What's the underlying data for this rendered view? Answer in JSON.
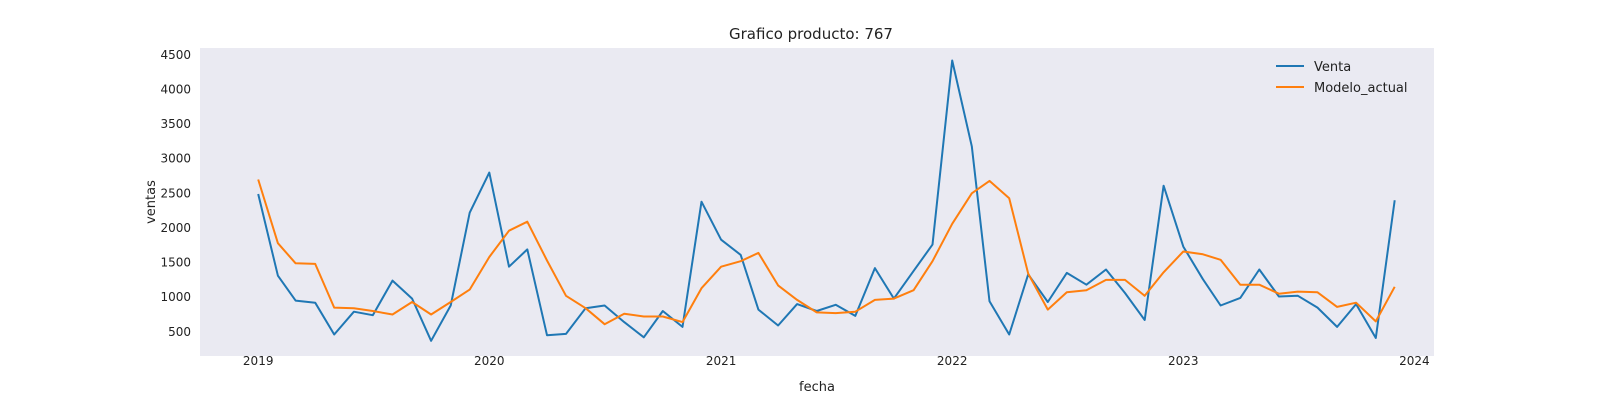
{
  "chart_data": {
    "type": "line",
    "title": "Grafico producto: 767",
    "xlabel": "fecha",
    "ylabel": "ventas",
    "xlim": [
      "2018-10-01",
      "2024-02-01"
    ],
    "ylim": [
      150,
      4600
    ],
    "grid": false,
    "legend_position": "top-right",
    "x_ticks": [
      "2019",
      "2020",
      "2021",
      "2022",
      "2023",
      "2024"
    ],
    "y_ticks": [
      500,
      1000,
      1500,
      2000,
      2500,
      3000,
      3500,
      4000,
      4500
    ],
    "x": [
      "2019-01",
      "2019-02",
      "2019-03",
      "2019-04",
      "2019-05",
      "2019-06",
      "2019-07",
      "2019-08",
      "2019-09",
      "2019-10",
      "2019-11",
      "2019-12",
      "2020-01",
      "2020-02",
      "2020-03",
      "2020-04",
      "2020-05",
      "2020-06",
      "2020-07",
      "2020-08",
      "2020-09",
      "2020-10",
      "2020-11",
      "2020-12",
      "2021-01",
      "2021-02",
      "2021-03",
      "2021-04",
      "2021-05",
      "2021-06",
      "2021-07",
      "2021-08",
      "2021-09",
      "2021-10",
      "2021-11",
      "2021-12",
      "2022-01",
      "2022-02",
      "2022-03",
      "2022-04",
      "2022-05",
      "2022-06",
      "2022-07",
      "2022-08",
      "2022-09",
      "2022-10",
      "2022-11",
      "2022-12",
      "2023-01",
      "2023-02",
      "2023-03",
      "2023-04",
      "2023-05",
      "2023-06",
      "2023-07",
      "2023-08",
      "2023-09",
      "2023-10",
      "2023-11",
      "2023-12"
    ],
    "series": [
      {
        "name": "Venta",
        "color": "#1f77b4",
        "values": [
          2490,
          1310,
          950,
          920,
          460,
          790,
          740,
          1240,
          980,
          370,
          880,
          2220,
          2800,
          1440,
          1690,
          450,
          470,
          840,
          880,
          640,
          420,
          800,
          570,
          2380,
          1830,
          1610,
          820,
          590,
          900,
          800,
          890,
          730,
          1420,
          980,
          1380,
          1760,
          4420,
          3180,
          940,
          460,
          1330,
          930,
          1350,
          1180,
          1400,
          1060,
          670,
          2610,
          1730,
          1260,
          880,
          990,
          1400,
          1010,
          1020,
          850,
          570,
          900,
          410,
          2400
        ]
      },
      {
        "name": "Modelo_actual",
        "color": "#ff7f0e",
        "values": [
          2700,
          1780,
          1490,
          1480,
          850,
          840,
          800,
          750,
          930,
          750,
          930,
          1110,
          1580,
          1960,
          2090,
          1530,
          1020,
          840,
          610,
          760,
          720,
          720,
          640,
          1130,
          1440,
          1520,
          1640,
          1170,
          960,
          780,
          770,
          790,
          960,
          980,
          1100,
          1520,
          2060,
          2500,
          2680,
          2430,
          1340,
          820,
          1070,
          1100,
          1250,
          1250,
          1020,
          1360,
          1660,
          1620,
          1540,
          1180,
          1180,
          1050,
          1080,
          1070,
          860,
          920,
          650,
          1150
        ]
      }
    ]
  }
}
